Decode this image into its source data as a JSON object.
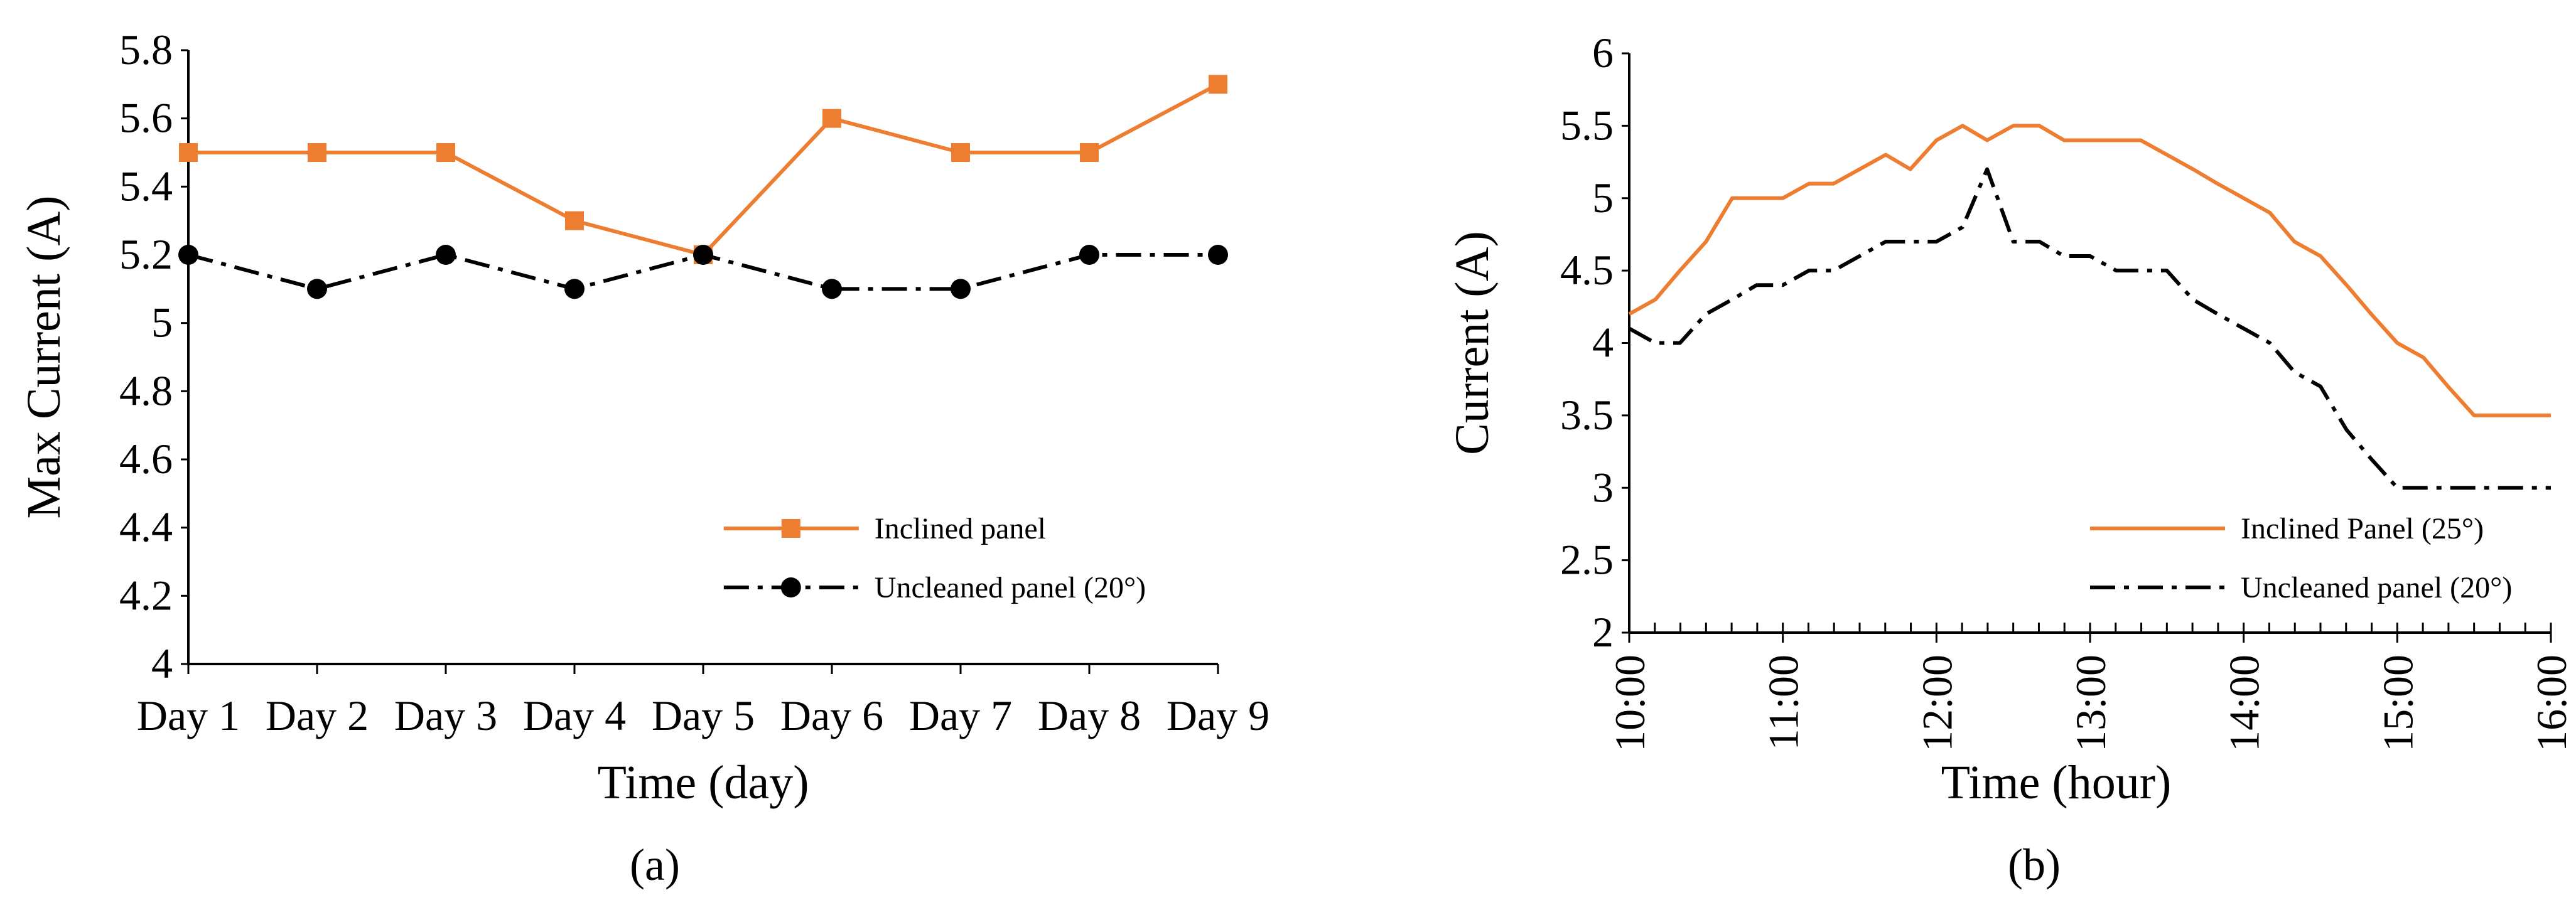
{
  "chart_data": [
    {
      "type": "line",
      "panel_label": "(a)",
      "xlabel": "Time (day)",
      "ylabel": "Max Current (A)",
      "ylim": [
        4,
        5.8
      ],
      "y_ticks": [
        "4",
        "4.2",
        "4.4",
        "4.6",
        "4.8",
        "5",
        "5.2",
        "5.4",
        "5.6",
        "5.8"
      ],
      "categories": [
        "Day 1",
        "Day 2",
        "Day 3",
        "Day 4",
        "Day 5",
        "Day 6",
        "Day 7",
        "Day 8",
        "Day 9"
      ],
      "series": [
        {
          "name": "Inclined panel",
          "color": "#ED7D31",
          "marker": "square",
          "dash": "solid",
          "values": [
            5.5,
            5.5,
            5.5,
            5.3,
            5.2,
            5.6,
            5.5,
            5.5,
            5.7
          ]
        },
        {
          "name": "Uncleaned panel (20°)",
          "color": "#000000",
          "marker": "circle",
          "dash": "dash-dot",
          "values": [
            5.2,
            5.1,
            5.2,
            5.1,
            5.2,
            5.1,
            5.1,
            5.2,
            5.2
          ]
        }
      ],
      "legend": "right"
    },
    {
      "type": "line",
      "panel_label": "(b)",
      "xlabel": "Time (hour)",
      "ylabel": "Current (A)",
      "ylim": [
        2,
        6
      ],
      "xlim": [
        10,
        16
      ],
      "y_ticks": [
        "2",
        "2.5",
        "3",
        "3.5",
        "4",
        "4.5",
        "5",
        "5.5",
        "6"
      ],
      "x_ticks": [
        "10:00",
        "11:00",
        "12:00",
        "13:00",
        "14:00",
        "15:00",
        "16:00"
      ],
      "x_tick_values": [
        10,
        11,
        12,
        13,
        14,
        15,
        16
      ],
      "series": [
        {
          "name": "Inclined Panel (25°)",
          "color": "#ED7D31",
          "dash": "solid",
          "x": [
            10,
            10.17,
            10.33,
            10.5,
            10.67,
            10.83,
            11,
            11.17,
            11.33,
            11.5,
            11.67,
            11.83,
            12,
            12.17,
            12.33,
            12.5,
            12.67,
            12.83,
            13,
            13.17,
            13.33,
            13.5,
            13.67,
            13.83,
            14,
            14.17,
            14.33,
            14.5,
            14.67,
            14.83,
            15,
            15.17,
            15.33,
            15.5,
            15.67,
            15.83,
            16
          ],
          "values": [
            4.2,
            4.3,
            4.5,
            4.7,
            5.0,
            5.0,
            5.0,
            5.1,
            5.1,
            5.2,
            5.3,
            5.2,
            5.4,
            5.5,
            5.4,
            5.5,
            5.5,
            5.4,
            5.4,
            5.4,
            5.4,
            5.3,
            5.2,
            5.1,
            5.0,
            4.9,
            4.7,
            4.6,
            4.4,
            4.2,
            4.0,
            3.9,
            3.7,
            3.5,
            3.5,
            3.5,
            3.5
          ]
        },
        {
          "name": "Uncleaned panel (20°)",
          "color": "#000000",
          "dash": "dash-dot",
          "x": [
            10,
            10.17,
            10.33,
            10.5,
            10.67,
            10.83,
            11,
            11.17,
            11.33,
            11.5,
            11.67,
            11.83,
            12,
            12.17,
            12.33,
            12.5,
            12.67,
            12.83,
            13,
            13.17,
            13.33,
            13.5,
            13.67,
            13.83,
            14,
            14.17,
            14.33,
            14.5,
            14.67,
            14.83,
            15,
            15.17,
            15.33,
            15.5,
            15.67,
            15.83,
            16
          ],
          "values": [
            4.1,
            4.0,
            4.0,
            4.2,
            4.3,
            4.4,
            4.4,
            4.5,
            4.5,
            4.6,
            4.7,
            4.7,
            4.7,
            4.8,
            5.2,
            4.7,
            4.7,
            4.6,
            4.6,
            4.5,
            4.5,
            4.5,
            4.3,
            4.2,
            4.1,
            4.0,
            3.8,
            3.7,
            3.4,
            3.2,
            3.0,
            3.0,
            3.0,
            3.0,
            3.0,
            3.0,
            3.0
          ]
        }
      ],
      "legend": "right"
    }
  ]
}
